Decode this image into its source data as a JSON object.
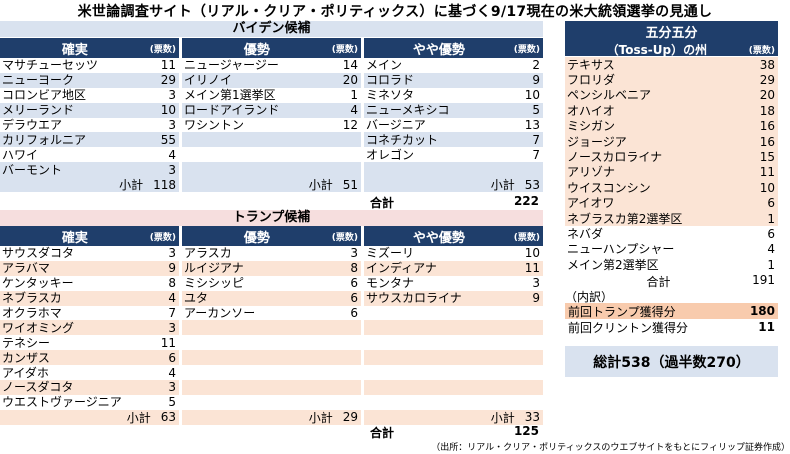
{
  "title": "米世論調査サイト（リアル・クリア・ポリティックス）に基づく9/17現在の米大統領選挙の見通し",
  "biden": {
    "header": "バイデン候補",
    "columns": [
      {
        "label": "確実",
        "unit": "(票数)",
        "rows": [
          [
            "マサチューセッツ",
            "11"
          ],
          [
            "ニューヨーク",
            "29"
          ],
          [
            "コロンビア地区",
            "3"
          ],
          [
            "メリーランド",
            "10"
          ],
          [
            "デラウエア",
            "3"
          ],
          [
            "カリフォルニア",
            "55"
          ],
          [
            "ハワイ",
            "4"
          ],
          [
            "バーモント",
            "3"
          ]
        ],
        "subtotal_label": "小計",
        "subtotal": "118"
      },
      {
        "label": "優勢",
        "unit": "(票数)",
        "rows": [
          [
            "ニュージャージー",
            "14"
          ],
          [
            "イリノイ",
            "20"
          ],
          [
            "メイン第1選挙区",
            "1"
          ],
          [
            "ロードアイランド",
            "4"
          ],
          [
            "ワシントン",
            "12"
          ]
        ],
        "subtotal_label": "小計",
        "subtotal": "51"
      },
      {
        "label": "やや優勢",
        "unit": "(票数)",
        "rows": [
          [
            "メイン",
            "2"
          ],
          [
            "コロラド",
            "9"
          ],
          [
            "ミネソタ",
            "10"
          ],
          [
            "ニューメキシコ",
            "5"
          ],
          [
            "バージニア",
            "13"
          ],
          [
            "コネチカット",
            "7"
          ],
          [
            "オレゴン",
            "7"
          ]
        ],
        "subtotal_label": "小計",
        "subtotal": "53"
      }
    ],
    "total_label": "合計",
    "total": "222"
  },
  "trump": {
    "header": "トランプ候補",
    "columns": [
      {
        "label": "確実",
        "unit": "(票数)",
        "rows": [
          [
            "サウスダコタ",
            "3"
          ],
          [
            "アラバマ",
            "9"
          ],
          [
            "ケンタッキー",
            "8"
          ],
          [
            "ネブラスカ",
            "4"
          ],
          [
            "オクラホマ",
            "7"
          ],
          [
            "ワイオミング",
            "3"
          ],
          [
            "テネシー",
            "11"
          ],
          [
            "カンザス",
            "6"
          ],
          [
            "アイダホ",
            "4"
          ],
          [
            "ノースダコタ",
            "3"
          ],
          [
            "ウエストヴァージニア",
            "5"
          ]
        ],
        "subtotal_label": "小計",
        "subtotal": "63"
      },
      {
        "label": "優勢",
        "unit": "(票数)",
        "rows": [
          [
            "アラスカ",
            "3"
          ],
          [
            "ルイジアナ",
            "8"
          ],
          [
            "ミシシッピ",
            "6"
          ],
          [
            "ユタ",
            "6"
          ],
          [
            "アーカンソー",
            "6"
          ]
        ],
        "subtotal_label": "小計",
        "subtotal": "29"
      },
      {
        "label": "やや優勢",
        "unit": "(票数)",
        "rows": [
          [
            "ミズーリ",
            "10"
          ],
          [
            "インディアナ",
            "11"
          ],
          [
            "モンタナ",
            "3"
          ],
          [
            "サウスカロライナ",
            "9"
          ]
        ],
        "subtotal_label": "小計",
        "subtotal": "33"
      }
    ],
    "total_label": "合計",
    "total": "125"
  },
  "tossup": {
    "header_line1": "五分五分",
    "header_line2": "（Toss-Up）の州",
    "unit": "(票数)",
    "rows": [
      [
        "テキサス",
        "38"
      ],
      [
        "フロリダ",
        "29"
      ],
      [
        "ペンシルベニア",
        "20"
      ],
      [
        "オハイオ",
        "18"
      ],
      [
        "ミシガン",
        "16"
      ],
      [
        "ジョージア",
        "16"
      ],
      [
        "ノースカロライナ",
        "15"
      ],
      [
        "アリゾナ",
        "11"
      ],
      [
        "ウイスコンシン",
        "10"
      ],
      [
        "アイオワ",
        "6"
      ],
      [
        "ネブラスカ第2選挙区",
        "1"
      ],
      [
        "ネバダ",
        "6"
      ],
      [
        "ニューハンプシャー",
        "4"
      ],
      [
        "メイン第2選挙区",
        "1"
      ]
    ],
    "shaded_rows": 11,
    "total_label": "合計",
    "total": "191",
    "breakdown_label": "（内訳）",
    "prev_trump_label": "前回トランプ獲得分",
    "prev_trump": "180",
    "prev_clinton_label": "前回クリントン獲得分",
    "prev_clinton": "11"
  },
  "grand_total": "総計538（過半数270）",
  "source_note": "（出所：リアル・クリア・ポリティックスのウエブサイトをもとにフィリップ証券作成）",
  "chart_data": {
    "type": "table",
    "title": "米世論調査サイト（リアル・クリア・ポリティックス）に基づく9/17現在の米大統領選挙の見通し",
    "groups": [
      {
        "name": "バイデン候補",
        "確実": 118,
        "優勢": 51,
        "やや優勢": 53,
        "合計": 222
      },
      {
        "name": "トランプ候補",
        "確実": 63,
        "優勢": 29,
        "やや優勢": 33,
        "合計": 125
      },
      {
        "name": "五分五分（Toss-Up）の州",
        "合計": 191,
        "前回トランプ獲得分": 180,
        "前回クリントン獲得分": 11
      }
    ],
    "total_electoral_votes": 538,
    "majority": 270
  },
  "colors": {
    "navy": "#1f3e6b",
    "light_blue": "#d9e2ef",
    "pink": "#f6dede",
    "peach": "#fbe4d5",
    "orange": "#f8cbad"
  }
}
